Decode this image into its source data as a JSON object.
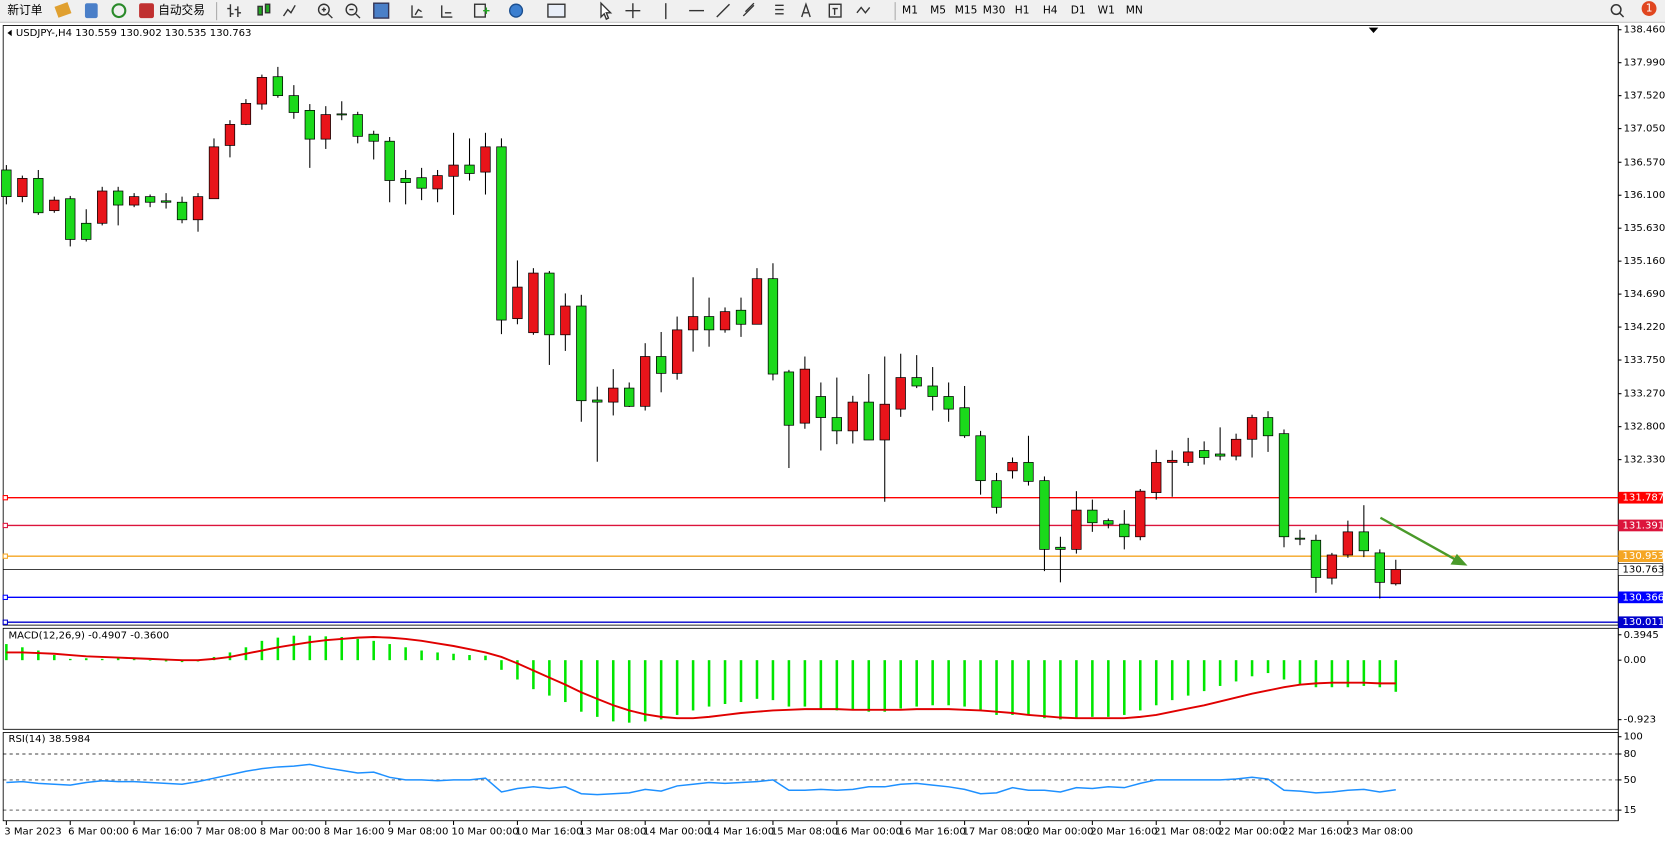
{
  "toolbar": {
    "new_order": "新订单",
    "auto_trading": "自动交易",
    "timeframes": [
      "M1",
      "M5",
      "M15",
      "M30",
      "H1",
      "H4",
      "D1",
      "W1",
      "MN"
    ],
    "notification": "1"
  },
  "chart": {
    "header": "USDJPY-,H4  130.559 130.902 130.535 130.763",
    "bull_color": "#e8141a",
    "bear_color": "#1bd91b",
    "ylim": [
      129.97,
      138.52
    ],
    "yticks": [
      {
        "value": 138.46,
        "label": "138.460"
      },
      {
        "value": 137.99,
        "label": "137.990"
      },
      {
        "value": 137.52,
        "label": "137.520"
      },
      {
        "value": 137.05,
        "label": "137.050"
      },
      {
        "value": 136.57,
        "label": "136.570"
      },
      {
        "value": 136.1,
        "label": "136.100"
      },
      {
        "value": 135.63,
        "label": "135.630"
      },
      {
        "value": 135.16,
        "label": "135.160"
      },
      {
        "value": 134.69,
        "label": "134.690"
      },
      {
        "value": 134.22,
        "label": "134.220"
      },
      {
        "value": 133.75,
        "label": "133.750"
      },
      {
        "value": 133.27,
        "label": "133.270"
      },
      {
        "value": 132.8,
        "label": "132.800"
      },
      {
        "value": 132.33,
        "label": "132.330"
      }
    ],
    "candles": [
      [
        136.46,
        136.53,
        135.97,
        136.08
      ],
      [
        136.08,
        136.38,
        136.0,
        136.34
      ],
      [
        136.34,
        136.46,
        135.82,
        135.85
      ],
      [
        135.88,
        136.08,
        135.85,
        136.03
      ],
      [
        136.05,
        136.09,
        135.37,
        135.47
      ],
      [
        135.7,
        135.9,
        135.44,
        135.47
      ],
      [
        135.7,
        136.22,
        135.67,
        136.16
      ],
      [
        136.16,
        136.22,
        135.67,
        135.96
      ],
      [
        135.96,
        136.13,
        135.93,
        136.08
      ],
      [
        136.08,
        136.11,
        135.93,
        136.0
      ],
      [
        136.02,
        136.13,
        135.91,
        136.0
      ],
      [
        136.0,
        136.08,
        135.7,
        135.75
      ],
      [
        135.75,
        136.13,
        135.58,
        136.08
      ],
      [
        136.05,
        136.91,
        136.05,
        136.79
      ],
      [
        136.81,
        137.17,
        136.64,
        137.11
      ],
      [
        137.11,
        137.47,
        137.1,
        137.41
      ],
      [
        137.4,
        137.82,
        137.32,
        137.78
      ],
      [
        137.79,
        137.93,
        137.49,
        137.52
      ],
      [
        137.52,
        137.67,
        137.19,
        137.28
      ],
      [
        137.31,
        137.4,
        136.49,
        136.9
      ],
      [
        136.9,
        137.37,
        136.76,
        137.25
      ],
      [
        137.26,
        137.44,
        137.17,
        137.25
      ],
      [
        137.25,
        137.29,
        136.84,
        136.94
      ],
      [
        136.97,
        137.02,
        136.61,
        136.87
      ],
      [
        136.87,
        136.93,
        136.0,
        136.31
      ],
      [
        136.34,
        136.46,
        135.97,
        136.28
      ],
      [
        136.35,
        136.49,
        136.03,
        136.2
      ],
      [
        136.19,
        136.46,
        136.0,
        136.38
      ],
      [
        136.37,
        136.99,
        135.82,
        136.53
      ],
      [
        136.53,
        136.91,
        136.31,
        136.41
      ],
      [
        136.43,
        136.99,
        136.11,
        136.79
      ],
      [
        136.79,
        136.91,
        134.12,
        134.32
      ],
      [
        134.34,
        135.17,
        134.26,
        134.79
      ],
      [
        134.14,
        135.06,
        134.11,
        134.99
      ],
      [
        134.99,
        135.02,
        133.68,
        134.11
      ],
      [
        134.11,
        134.7,
        133.88,
        134.52
      ],
      [
        134.52,
        134.68,
        132.87,
        133.17
      ],
      [
        133.18,
        133.37,
        132.3,
        133.15
      ],
      [
        133.15,
        133.62,
        132.96,
        133.35
      ],
      [
        133.35,
        133.43,
        133.08,
        133.09
      ],
      [
        133.09,
        133.99,
        133.03,
        133.8
      ],
      [
        133.8,
        134.15,
        133.29,
        133.56
      ],
      [
        133.56,
        134.37,
        133.47,
        134.18
      ],
      [
        134.18,
        134.93,
        133.87,
        134.37
      ],
      [
        134.37,
        134.64,
        133.94,
        134.18
      ],
      [
        134.18,
        134.5,
        134.14,
        134.44
      ],
      [
        134.46,
        134.64,
        134.08,
        134.26
      ],
      [
        134.26,
        135.06,
        134.26,
        134.91
      ],
      [
        134.91,
        135.13,
        133.46,
        133.55
      ],
      [
        133.58,
        133.61,
        132.21,
        132.82
      ],
      [
        132.85,
        133.8,
        132.77,
        133.62
      ],
      [
        133.23,
        133.43,
        132.46,
        132.93
      ],
      [
        132.93,
        133.5,
        132.55,
        132.74
      ],
      [
        132.74,
        133.24,
        132.56,
        133.15
      ],
      [
        133.15,
        133.55,
        132.61,
        132.61
      ],
      [
        132.61,
        133.8,
        131.73,
        133.12
      ],
      [
        133.05,
        133.84,
        132.94,
        133.5
      ],
      [
        133.5,
        133.82,
        133.35,
        133.38
      ],
      [
        133.38,
        133.65,
        133.03,
        133.23
      ],
      [
        133.23,
        133.43,
        132.87,
        133.05
      ],
      [
        133.07,
        133.38,
        132.64,
        132.67
      ],
      [
        132.67,
        132.74,
        131.83,
        132.03
      ],
      [
        132.03,
        132.14,
        131.56,
        131.65
      ],
      [
        132.17,
        132.36,
        132.06,
        132.29
      ],
      [
        132.29,
        132.67,
        131.96,
        132.02
      ],
      [
        132.03,
        132.09,
        130.74,
        131.05
      ],
      [
        131.08,
        131.23,
        130.58,
        131.05
      ],
      [
        131.05,
        131.88,
        130.99,
        131.61
      ],
      [
        131.61,
        131.76,
        131.3,
        131.43
      ],
      [
        131.46,
        131.49,
        131.35,
        131.41
      ],
      [
        131.41,
        131.61,
        131.05,
        131.23
      ],
      [
        131.23,
        131.91,
        131.18,
        131.88
      ],
      [
        131.86,
        132.47,
        131.76,
        132.29
      ],
      [
        132.29,
        132.46,
        131.8,
        132.32
      ],
      [
        132.29,
        132.64,
        132.24,
        132.44
      ],
      [
        132.46,
        132.59,
        132.26,
        132.36
      ],
      [
        132.41,
        132.79,
        132.32,
        132.38
      ],
      [
        132.38,
        132.7,
        132.32,
        132.62
      ],
      [
        132.62,
        132.97,
        132.36,
        132.93
      ],
      [
        132.93,
        133.02,
        132.44,
        132.67
      ],
      [
        132.7,
        132.76,
        131.08,
        131.23
      ],
      [
        131.21,
        131.33,
        131.11,
        131.2
      ],
      [
        131.18,
        131.26,
        130.43,
        130.65
      ],
      [
        130.64,
        131.0,
        130.55,
        130.97
      ],
      [
        130.97,
        131.46,
        130.93,
        131.3
      ],
      [
        131.3,
        131.68,
        130.94,
        131.03
      ],
      [
        131.0,
        131.05,
        130.35,
        130.58
      ],
      [
        130.559,
        130.902,
        130.535,
        130.763
      ]
    ],
    "hlines": [
      {
        "value": 131.787,
        "label": "131.787",
        "color": "#ff0000"
      },
      {
        "value": 131.391,
        "label": "131.391",
        "color": "#dc143c"
      },
      {
        "value": 130.953,
        "label": "130.953",
        "color": "#f5a623"
      },
      {
        "value": 130.366,
        "label": "130.366",
        "color": "#0000ff"
      },
      {
        "value": 130.011,
        "label": "130.011",
        "color": "#0000cd"
      }
    ],
    "current": {
      "value": 130.763,
      "label": "130.763"
    },
    "time_labels": [
      "3 Mar 2023",
      "6 Mar 00:00",
      "6 Mar 16:00",
      "7 Mar 08:00",
      "8 Mar 00:00",
      "8 Mar 16:00",
      "9 Mar 08:00",
      "10 Mar 00:00",
      "10 Mar 16:00",
      "13 Mar 08:00",
      "14 Mar 00:00",
      "14 Mar 16:00",
      "15 Mar 08:00",
      "16 Mar 00:00",
      "16 Mar 16:00",
      "17 Mar 08:00",
      "20 Mar 00:00",
      "20 Mar 16:00",
      "21 Mar 08:00",
      "22 Mar 00:00",
      "22 Mar 16:00",
      "23 Mar 08:00"
    ]
  },
  "macd": {
    "label": "MACD(12,26,9) -0.4907 -0.3600",
    "ylim": [
      -1.073,
      0.4946
    ],
    "yticks": [
      {
        "value": 0.3945,
        "label": "0.3945"
      },
      {
        "value": 0,
        "label": "0.00"
      },
      {
        "value": -0.923,
        "label": "-0.923"
      }
    ],
    "hist_color": "#00e600",
    "signal_color": "#e00000",
    "histogram": [
      0.25,
      0.2,
      0.15,
      0.08,
      0.02,
      0.03,
      0.02,
      0.03,
      0.02,
      0.0,
      -0.02,
      -0.03,
      -0.02,
      0.05,
      0.12,
      0.2,
      0.3,
      0.35,
      0.38,
      0.38,
      0.37,
      0.36,
      0.33,
      0.3,
      0.25,
      0.2,
      0.15,
      0.12,
      0.1,
      0.08,
      0.07,
      -0.15,
      -0.3,
      -0.45,
      -0.55,
      -0.65,
      -0.8,
      -0.88,
      -0.95,
      -0.97,
      -0.95,
      -0.92,
      -0.85,
      -0.78,
      -0.72,
      -0.68,
      -0.65,
      -0.6,
      -0.62,
      -0.72,
      -0.72,
      -0.75,
      -0.78,
      -0.78,
      -0.8,
      -0.8,
      -0.75,
      -0.72,
      -0.7,
      -0.7,
      -0.72,
      -0.78,
      -0.85,
      -0.85,
      -0.85,
      -0.9,
      -0.92,
      -0.9,
      -0.88,
      -0.88,
      -0.85,
      -0.78,
      -0.7,
      -0.62,
      -0.55,
      -0.48,
      -0.4,
      -0.33,
      -0.25,
      -0.2,
      -0.3,
      -0.38,
      -0.42,
      -0.42,
      -0.42,
      -0.4,
      -0.42,
      -0.4907
    ],
    "signal": [
      0.12,
      0.12,
      0.11,
      0.1,
      0.08,
      0.06,
      0.05,
      0.04,
      0.03,
      0.02,
      0.01,
      0.0,
      0.0,
      0.02,
      0.05,
      0.1,
      0.15,
      0.2,
      0.24,
      0.28,
      0.31,
      0.33,
      0.35,
      0.36,
      0.35,
      0.33,
      0.3,
      0.26,
      0.22,
      0.17,
      0.12,
      0.05,
      -0.05,
      -0.16,
      -0.27,
      -0.38,
      -0.5,
      -0.6,
      -0.7,
      -0.78,
      -0.84,
      -0.88,
      -0.9,
      -0.9,
      -0.88,
      -0.85,
      -0.82,
      -0.8,
      -0.78,
      -0.77,
      -0.76,
      -0.76,
      -0.76,
      -0.77,
      -0.77,
      -0.77,
      -0.77,
      -0.76,
      -0.76,
      -0.76,
      -0.77,
      -0.78,
      -0.8,
      -0.82,
      -0.85,
      -0.87,
      -0.89,
      -0.9,
      -0.9,
      -0.9,
      -0.9,
      -0.88,
      -0.85,
      -0.8,
      -0.75,
      -0.7,
      -0.64,
      -0.58,
      -0.52,
      -0.47,
      -0.42,
      -0.38,
      -0.36,
      -0.35,
      -0.35,
      -0.35,
      -0.36,
      -0.36
    ]
  },
  "rsi": {
    "label": "RSI(14) 38.5984",
    "ylim": [
      2.7,
      104.9
    ],
    "yticks": [
      100,
      80,
      50,
      15
    ],
    "color": "#1e90ff",
    "values": [
      47,
      48,
      46,
      45,
      44,
      47,
      49,
      48,
      48,
      47,
      46,
      45,
      48,
      52,
      56,
      60,
      63,
      65,
      66,
      68,
      64,
      61,
      58,
      59,
      53,
      50,
      50,
      49,
      50,
      50,
      52,
      36,
      40,
      42,
      40,
      42,
      34,
      33,
      34,
      35,
      39,
      37,
      43,
      45,
      47,
      46,
      47,
      48,
      50,
      38,
      38,
      39,
      38,
      39,
      42,
      42,
      45,
      46,
      44,
      42,
      39,
      34,
      35,
      41,
      38,
      38,
      36,
      41,
      40,
      42,
      41,
      46,
      50,
      50,
      50,
      50,
      50,
      51,
      53,
      51,
      38,
      37,
      35,
      36,
      38,
      39,
      36,
      38.5984
    ]
  }
}
